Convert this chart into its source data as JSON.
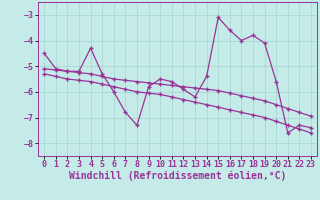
{
  "title": "",
  "xlabel": "Windchill (Refroidissement éolien,°C)",
  "background_color": "#c5ebe8",
  "grid_color": "#a8d8d4",
  "line_color": "#993399",
  "x_values": [
    0,
    1,
    2,
    3,
    4,
    5,
    6,
    7,
    8,
    9,
    10,
    11,
    12,
    13,
    14,
    15,
    16,
    17,
    18,
    19,
    20,
    21,
    22,
    23
  ],
  "y_main": [
    -4.5,
    -5.1,
    -5.2,
    -5.2,
    -4.3,
    -5.3,
    -6.0,
    -6.8,
    -7.3,
    -5.8,
    -5.5,
    -5.6,
    -5.9,
    -6.2,
    -5.4,
    -3.1,
    -3.6,
    -4.0,
    -3.8,
    -4.1,
    -5.6,
    -7.6,
    -7.3,
    -7.4
  ],
  "y_trend1": [
    -5.1,
    -5.15,
    -5.2,
    -5.25,
    -5.3,
    -5.4,
    -5.5,
    -5.55,
    -5.6,
    -5.65,
    -5.7,
    -5.75,
    -5.8,
    -5.85,
    -5.9,
    -5.95,
    -6.05,
    -6.15,
    -6.25,
    -6.35,
    -6.5,
    -6.65,
    -6.8,
    -6.95
  ],
  "y_trend2": [
    -5.3,
    -5.4,
    -5.5,
    -5.55,
    -5.6,
    -5.7,
    -5.8,
    -5.9,
    -6.0,
    -6.05,
    -6.1,
    -6.2,
    -6.3,
    -6.4,
    -6.5,
    -6.6,
    -6.7,
    -6.8,
    -6.9,
    -7.0,
    -7.15,
    -7.3,
    -7.45,
    -7.6
  ],
  "ylim": [
    -8.5,
    -2.5
  ],
  "xlim": [
    -0.5,
    23.5
  ],
  "yticks": [
    -8,
    -7,
    -6,
    -5,
    -4,
    -3
  ],
  "xticks": [
    0,
    1,
    2,
    3,
    4,
    5,
    6,
    7,
    8,
    9,
    10,
    11,
    12,
    13,
    14,
    15,
    16,
    17,
    18,
    19,
    20,
    21,
    22,
    23
  ],
  "tick_fontsize": 6,
  "xlabel_fontsize": 7,
  "linewidth": 0.9,
  "markersize": 3.5
}
